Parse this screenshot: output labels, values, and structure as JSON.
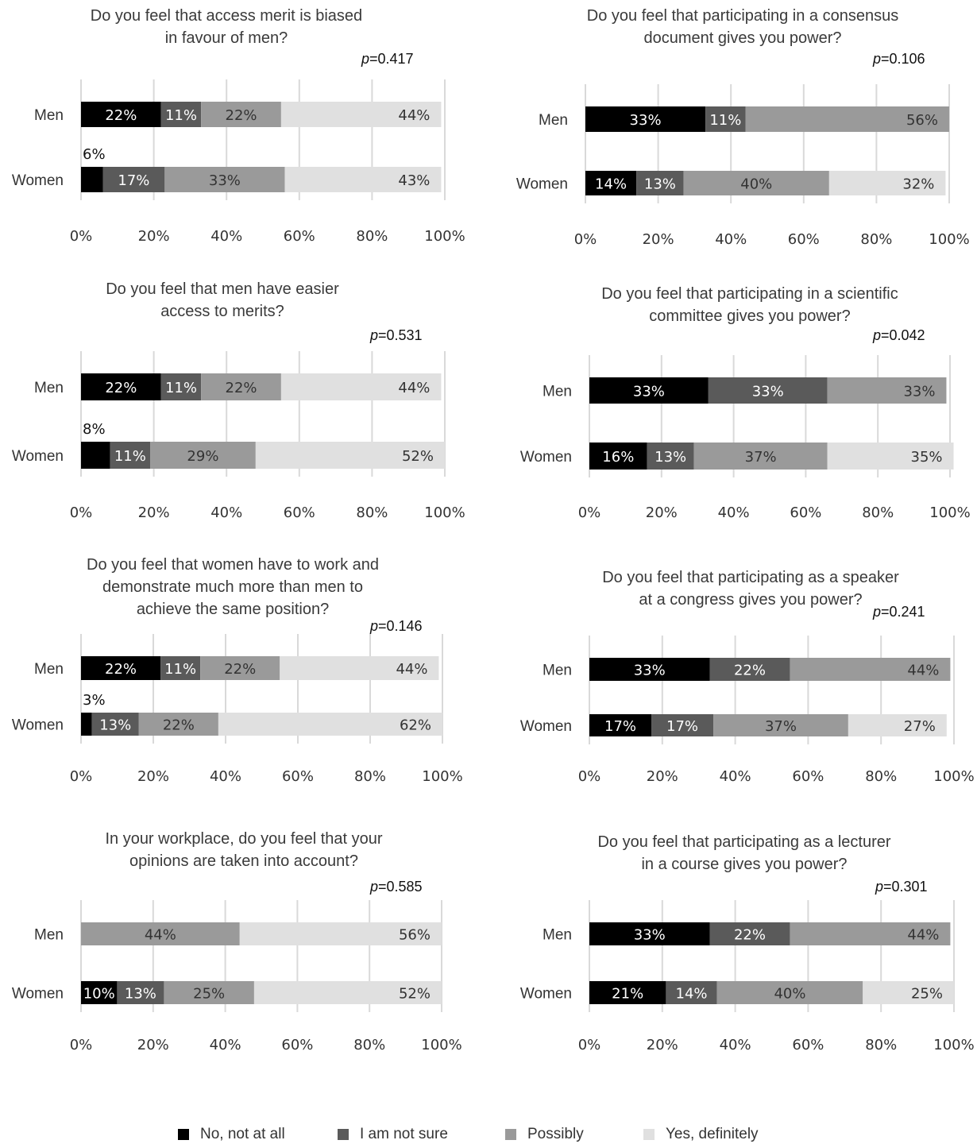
{
  "colors": {
    "no_not_at_all": "#000000",
    "i_am_not_sure": "#5a5a5a",
    "possibly": "#9a9a9a",
    "yes_definitely": "#e0e0e0",
    "grid": "#d9d9d9"
  },
  "legend": [
    {
      "label": "No, not at all",
      "color": "#000000"
    },
    {
      "label": "I am not sure",
      "color": "#5a5a5a"
    },
    {
      "label": "Possibly",
      "color": "#9a9a9a"
    },
    {
      "label": "Yes, definitely",
      "color": "#e0e0e0"
    }
  ],
  "x_tick_labels": [
    "0%",
    "20%",
    "40%",
    "60%",
    "80%",
    "100%"
  ],
  "chart_data": [
    {
      "type": "bar",
      "orientation": "horizontal",
      "stacked": true,
      "title": "Do you feel that access merit is biased\nin favour of men?",
      "p_label": "p",
      "p_value": "=0.417",
      "categories": [
        "Men",
        "Women"
      ],
      "xlim": [
        0,
        100
      ],
      "series": [
        {
          "name": "No, not at all",
          "values": [
            22,
            6
          ]
        },
        {
          "name": "I am not sure",
          "values": [
            11,
            17
          ]
        },
        {
          "name": "Possibly",
          "values": [
            22,
            33
          ]
        },
        {
          "name": "Yes, definitely",
          "values": [
            44,
            43
          ]
        }
      ],
      "labels": [
        [
          "22%",
          "11%",
          "22%",
          "44%"
        ],
        [
          "6%",
          "17%",
          "33%",
          "43%"
        ]
      ]
    },
    {
      "type": "bar",
      "orientation": "horizontal",
      "stacked": true,
      "title": "Do you feel that participating in a consensus\ndocument gives you power?",
      "p_label": "p",
      "p_value": "=0.106",
      "categories": [
        "Men",
        "Women"
      ],
      "xlim": [
        0,
        100
      ],
      "series": [
        {
          "name": "No, not at all",
          "values": [
            33,
            14
          ]
        },
        {
          "name": "I am not sure",
          "values": [
            11,
            13
          ]
        },
        {
          "name": "Possibly",
          "values": [
            56,
            40
          ]
        },
        {
          "name": "Yes, definitely",
          "values": [
            0,
            32
          ]
        }
      ],
      "labels": [
        [
          "33%",
          "11%",
          "56%",
          ""
        ],
        [
          "14%",
          "13%",
          "40%",
          "32%"
        ]
      ]
    },
    {
      "type": "bar",
      "orientation": "horizontal",
      "stacked": true,
      "title": "Do you feel that men have easier\naccess to merits?",
      "p_label": "p",
      "p_value": "=0.531",
      "categories": [
        "Men",
        "Women"
      ],
      "xlim": [
        0,
        100
      ],
      "series": [
        {
          "name": "No, not at all",
          "values": [
            22,
            8
          ]
        },
        {
          "name": "I am not sure",
          "values": [
            11,
            11
          ]
        },
        {
          "name": "Possibly",
          "values": [
            22,
            29
          ]
        },
        {
          "name": "Yes, definitely",
          "values": [
            44,
            52
          ]
        }
      ],
      "labels": [
        [
          "22%",
          "11%",
          "22%",
          "44%"
        ],
        [
          "8%",
          "11%",
          "29%",
          "52%"
        ]
      ]
    },
    {
      "type": "bar",
      "orientation": "horizontal",
      "stacked": true,
      "title": "Do you feel that participating in a scientific\ncommittee gives you power?",
      "p_label": "p",
      "p_value": "=0.042",
      "categories": [
        "Men",
        "Women"
      ],
      "xlim": [
        0,
        100
      ],
      "series": [
        {
          "name": "No, not at all",
          "values": [
            33,
            16
          ]
        },
        {
          "name": "I am not sure",
          "values": [
            33,
            13
          ]
        },
        {
          "name": "Possibly",
          "values": [
            33,
            37
          ]
        },
        {
          "name": "Yes, definitely",
          "values": [
            0,
            35
          ]
        }
      ],
      "labels": [
        [
          "33%",
          "33%",
          "33%",
          ""
        ],
        [
          "16%",
          "13%",
          "37%",
          "35%"
        ]
      ]
    },
    {
      "type": "bar",
      "orientation": "horizontal",
      "stacked": true,
      "title": "Do you feel that women have to work and\ndemonstrate much more than men to\nachieve the same position?",
      "p_label": "p",
      "p_value": "=0.146",
      "categories": [
        "Men",
        "Women"
      ],
      "xlim": [
        0,
        100
      ],
      "series": [
        {
          "name": "No, not at all",
          "values": [
            22,
            3
          ]
        },
        {
          "name": "I am not sure",
          "values": [
            11,
            13
          ]
        },
        {
          "name": "Possibly",
          "values": [
            22,
            22
          ]
        },
        {
          "name": "Yes, definitely",
          "values": [
            44,
            62
          ]
        }
      ],
      "labels": [
        [
          "22%",
          "11%",
          "22%",
          "44%"
        ],
        [
          "3%",
          "13%",
          "22%",
          "62%"
        ]
      ]
    },
    {
      "type": "bar",
      "orientation": "horizontal",
      "stacked": true,
      "title": "Do you feel that participating as a speaker\nat a congress gives you power?",
      "p_label": "p",
      "p_value": "=0.241",
      "categories": [
        "Men",
        "Women"
      ],
      "xlim": [
        0,
        100
      ],
      "series": [
        {
          "name": "No, not at all",
          "values": [
            33,
            17
          ]
        },
        {
          "name": "I am not sure",
          "values": [
            22,
            17
          ]
        },
        {
          "name": "Possibly",
          "values": [
            44,
            37
          ]
        },
        {
          "name": "Yes, definitely",
          "values": [
            0,
            27
          ]
        }
      ],
      "labels": [
        [
          "33%",
          "22%",
          "44%",
          ""
        ],
        [
          "17%",
          "17%",
          "37%",
          "27%"
        ]
      ]
    },
    {
      "type": "bar",
      "orientation": "horizontal",
      "stacked": true,
      "title": "In your workplace, do you feel that your\nopinions are taken into account?",
      "p_label": "p",
      "p_value": "=0.585",
      "categories": [
        "Men",
        "Women"
      ],
      "xlim": [
        0,
        100
      ],
      "series": [
        {
          "name": "No, not at all",
          "values": [
            0,
            10
          ]
        },
        {
          "name": "I am not sure",
          "values": [
            0,
            13
          ]
        },
        {
          "name": "Possibly",
          "values": [
            44,
            25
          ]
        },
        {
          "name": "Yes, definitely",
          "values": [
            56,
            52
          ]
        }
      ],
      "labels": [
        [
          "",
          "",
          "44%",
          "56%"
        ],
        [
          "10%",
          "13%",
          "25%",
          "52%"
        ]
      ]
    },
    {
      "type": "bar",
      "orientation": "horizontal",
      "stacked": true,
      "title": "Do you feel that participating as a lecturer\nin a course gives you power?",
      "p_label": "p",
      "p_value": "=0.301",
      "categories": [
        "Men",
        "Women"
      ],
      "xlim": [
        0,
        100
      ],
      "series": [
        {
          "name": "No, not at all",
          "values": [
            33,
            21
          ]
        },
        {
          "name": "I am not sure",
          "values": [
            22,
            14
          ]
        },
        {
          "name": "Possibly",
          "values": [
            44,
            40
          ]
        },
        {
          "name": "Yes, definitely",
          "values": [
            0,
            25
          ]
        }
      ],
      "labels": [
        [
          "33%",
          "22%",
          "44%",
          ""
        ],
        [
          "21%",
          "14%",
          "40%",
          "25%"
        ]
      ]
    }
  ]
}
